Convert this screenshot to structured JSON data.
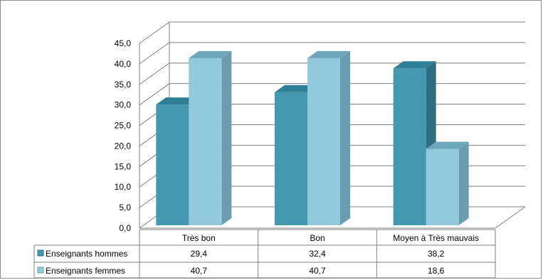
{
  "chart_data": {
    "type": "bar",
    "categories": [
      "Très bon",
      "Bon",
      "Moyen à Très mauvais"
    ],
    "series": [
      {
        "name": "Enseignants hommes",
        "values": [
          29.4,
          32.4,
          38.2
        ]
      },
      {
        "name": "Enseignants femmes",
        "values": [
          40.7,
          40.7,
          18.6
        ]
      }
    ],
    "table_values": [
      [
        "29,4",
        "32,4",
        "38,2"
      ],
      [
        "40,7",
        "40,7",
        "18,6"
      ]
    ],
    "ylim": [
      0,
      45
    ],
    "y_ticks": [
      "0,0",
      "5,0",
      "10,0",
      "15,0",
      "20,0",
      "25,0",
      "30,0",
      "35,0",
      "40,0",
      "45,0"
    ],
    "grid": true,
    "legend": "data-table",
    "three_d": true
  },
  "colors": {
    "hommes_front": "#4499b0",
    "hommes_side": "#2c6e82",
    "hommes_top": "#2f7f96",
    "femmes_front": "#93c9dc",
    "femmes_side": "#6a9db0",
    "femmes_top": "#6fa6bb",
    "grid": "#7f7f7f"
  }
}
